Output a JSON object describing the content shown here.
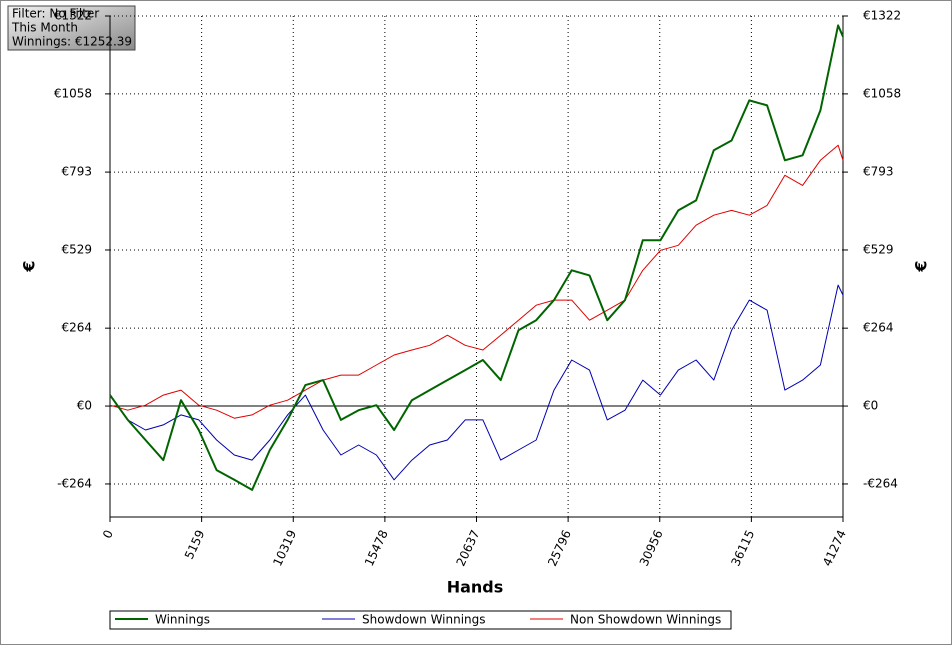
{
  "chart_data": {
    "type": "line",
    "info": [
      "Filter: No Filter",
      "This Month",
      "Winnings: €1252.39"
    ],
    "xlabel": "Hands",
    "ylabel": "€",
    "y2label": "€",
    "x": [
      0,
      1000,
      2000,
      3000,
      4000,
      5000,
      6000,
      7000,
      8000,
      9000,
      10000,
      11000,
      12000,
      13000,
      14000,
      15000,
      16000,
      17000,
      18000,
      19000,
      20000,
      21000,
      22000,
      23000,
      24000,
      25000,
      26000,
      27000,
      28000,
      29000,
      30000,
      31000,
      32000,
      33000,
      34000,
      35000,
      36000,
      37000,
      38000,
      39000,
      40000,
      41000,
      41274
    ],
    "series": [
      {
        "name": "Winnings",
        "color": "#006400",
        "values": [
          37,
          -47,
          -115,
          -183,
          20,
          -81,
          -217,
          -250,
          -284,
          -149,
          -47,
          71,
          88,
          -47,
          -14,
          3,
          -81,
          20,
          54,
          88,
          122,
          156,
          88,
          257,
          291,
          359,
          460,
          443,
          291,
          359,
          562,
          562,
          663,
          697,
          867,
          900,
          1036,
          1019,
          833,
          850,
          1002,
          1290,
          1252
        ]
      },
      {
        "name": "Showdown Winnings",
        "color": "#0000b0",
        "values": [
          37,
          -47,
          -81,
          -64,
          -30,
          -47,
          -115,
          -166,
          -183,
          -115,
          -30,
          37,
          -81,
          -166,
          -132,
          -166,
          -250,
          -183,
          -132,
          -115,
          -47,
          -47,
          -183,
          -149,
          -115,
          54,
          156,
          122,
          -47,
          -14,
          88,
          37,
          122,
          156,
          88,
          257,
          359,
          325,
          54,
          88,
          139,
          410,
          376
        ]
      },
      {
        "name": "Non Showdown Winnings",
        "color": "#e00000",
        "values": [
          3,
          -14,
          3,
          37,
          54,
          3,
          -14,
          -41,
          -30,
          3,
          20,
          54,
          88,
          105,
          105,
          139,
          173,
          190,
          206,
          240,
          206,
          190,
          240,
          291,
          342,
          359,
          359,
          291,
          325,
          359,
          460,
          528,
          545,
          613,
          647,
          663,
          647,
          680,
          782,
          748,
          833,
          884,
          833
        ]
      }
    ],
    "xlim": [
      0,
      41274
    ],
    "xticks": [
      0,
      5159,
      10319,
      15478,
      20637,
      25796,
      30956,
      36115,
      41274
    ],
    "ylim": [
      -376,
      1322
    ],
    "yticks": [
      {
        "value": -264,
        "label": "-€264"
      },
      {
        "value": 0,
        "label": "€0"
      },
      {
        "value": 264,
        "label": "€264"
      },
      {
        "value": 529,
        "label": "€529"
      },
      {
        "value": 793,
        "label": "€793"
      },
      {
        "value": 1058,
        "label": "€1058"
      },
      {
        "value": 1322,
        "label": "€1322"
      }
    ],
    "y2lim": [
      -376,
      1322
    ],
    "y2ticks": [
      {
        "value": -264,
        "label": "-€264"
      },
      {
        "value": 0,
        "label": "€0"
      },
      {
        "value": 264,
        "label": "€264"
      },
      {
        "value": 529,
        "label": "€529"
      },
      {
        "value": 793,
        "label": "€793"
      },
      {
        "value": 1058,
        "label": "€1058"
      },
      {
        "value": 1322,
        "label": "€1322"
      }
    ],
    "grid": true,
    "legend": "bottom"
  }
}
